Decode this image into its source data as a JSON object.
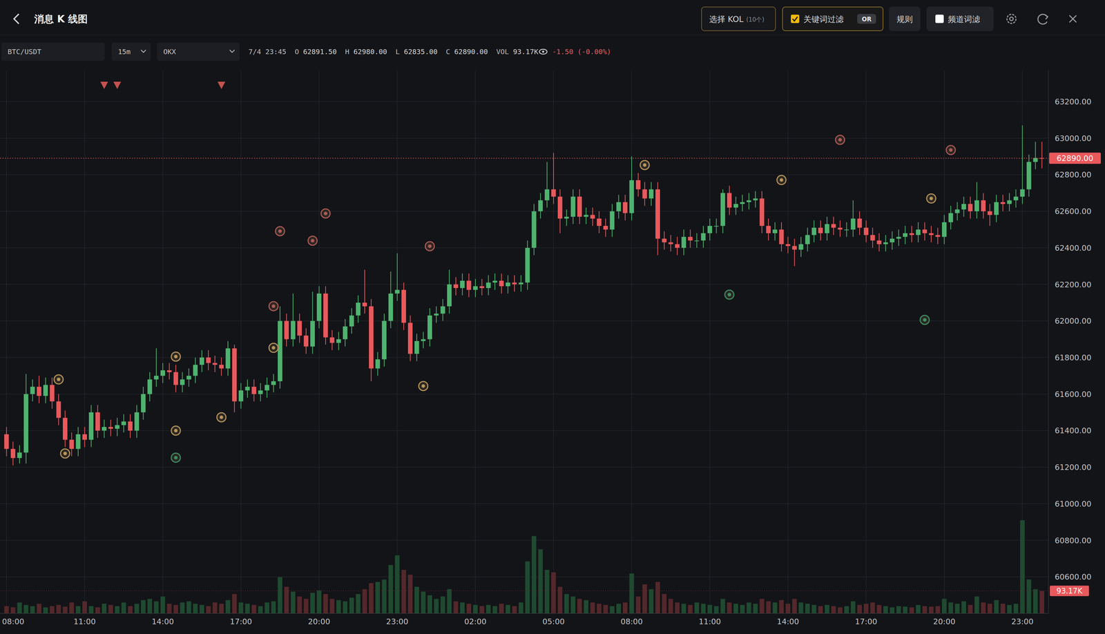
{
  "header": {
    "title": "消息 K 线图",
    "kol": "选择 KOL",
    "kol_count": "(10个)",
    "keyword_filter": "关键词过滤",
    "or": "OR",
    "rules": "规则",
    "channel_filter": "频道词滤",
    "keyword_filter_checked": true,
    "channel_filter_checked": false
  },
  "toolbar": {
    "symbol": "BTC/USDT",
    "interval": "15m",
    "exchange": "OKX",
    "ohlc_info": {
      "time": "7/4 23:45",
      "fields": [
        {
          "key": "O",
          "value": "62891.50"
        },
        {
          "key": "H",
          "value": "62980.00"
        },
        {
          "key": "L",
          "value": "62835.00"
        },
        {
          "key": "C",
          "value": "62890.00"
        },
        {
          "key": "VOL",
          "value": "93.17K"
        }
      ],
      "change": "-1.50 (-0.00%)"
    }
  },
  "chart_data": {
    "type": "candlestick",
    "grid": true,
    "categories": [
      "08:00",
      null,
      null,
      null,
      null,
      null,
      null,
      null,
      null,
      null,
      null,
      null,
      "11:00",
      null,
      null,
      null,
      null,
      null,
      null,
      null,
      null,
      null,
      null,
      null,
      "14:00",
      null,
      null,
      null,
      null,
      null,
      null,
      null,
      null,
      null,
      null,
      null,
      "17:00",
      null,
      null,
      null,
      null,
      null,
      null,
      null,
      null,
      null,
      null,
      null,
      "20:00",
      null,
      null,
      null,
      null,
      null,
      null,
      null,
      null,
      null,
      null,
      null,
      "23:00",
      null,
      null,
      null,
      null,
      null,
      null,
      null,
      null,
      null,
      null,
      null,
      "02:00",
      null,
      null,
      null,
      null,
      null,
      null,
      null,
      null,
      null,
      null,
      null,
      "05:00",
      null,
      null,
      null,
      null,
      null,
      null,
      null,
      null,
      null,
      null,
      null,
      "08:00",
      null,
      null,
      null,
      null,
      null,
      null,
      null,
      null,
      null,
      null,
      null,
      "11:00",
      null,
      null,
      null,
      null,
      null,
      null,
      null,
      null,
      null,
      null,
      null,
      "14:00",
      null,
      null,
      null,
      null,
      null,
      null,
      null,
      null,
      null,
      null,
      null,
      "17:00",
      null,
      null,
      null,
      null,
      null,
      null,
      null,
      null,
      null,
      null,
      null,
      "20:00",
      null,
      null,
      null,
      null,
      null,
      null,
      null,
      null,
      null,
      null,
      null,
      "23:00",
      null,
      null,
      null
    ],
    "open": [
      61380,
      61300,
      61250,
      61280,
      61600,
      61640,
      61590,
      61650,
      61560,
      61470,
      61350,
      61300,
      61380,
      61350,
      61500,
      61400,
      61420,
      61410,
      61430,
      61450,
      61400,
      61500,
      61600,
      61680,
      61700,
      61730,
      61720,
      61650,
      61680,
      61700,
      61760,
      61800,
      61770,
      61760,
      61740,
      61850,
      61560,
      61620,
      61640,
      61600,
      61620,
      61650,
      61670,
      62000,
      61900,
      62000,
      61920,
      61860,
      62000,
      62150,
      61910,
      61880,
      61900,
      61970,
      62030,
      62100,
      62080,
      61740,
      61790,
      62000,
      62150,
      62170,
      61990,
      61820,
      61890,
      61900,
      62030,
      62040,
      62080,
      62200,
      62180,
      62220,
      62170,
      62190,
      62180,
      62210,
      62220,
      62190,
      62210,
      62200,
      62210,
      62400,
      62600,
      62660,
      62720,
      62680,
      62560,
      62570,
      62680,
      62570,
      62580,
      62560,
      62520,
      62500,
      62600,
      62650,
      62590,
      62770,
      62720,
      62670,
      62720,
      62450,
      62430,
      62420,
      62400,
      62460,
      62440,
      62440,
      62480,
      62520,
      62520,
      62700,
      62620,
      62640,
      62650,
      62660,
      62670,
      62520,
      62480,
      62500,
      62420,
      62410,
      62390,
      62420,
      62470,
      62510,
      62480,
      62530,
      62510,
      62500,
      62500,
      62560,
      62510,
      62470,
      62440,
      62420,
      62430,
      62450,
      62460,
      62480,
      62470,
      62500,
      62480,
      62470,
      62460,
      62540,
      62590,
      62610,
      62640,
      62600,
      62660,
      62600,
      62580,
      62650,
      62640,
      62660,
      62680,
      62720,
      62870,
      62891.5
    ],
    "high": [
      61420,
      61340,
      61320,
      61710,
      61680,
      61700,
      61690,
      61690,
      61600,
      61510,
      61390,
      61420,
      61420,
      61540,
      61540,
      61460,
      61460,
      61470,
      61490,
      61490,
      61540,
      61640,
      61720,
      61850,
      61770,
      61770,
      61760,
      61720,
      61740,
      61800,
      61840,
      61840,
      61810,
      61800,
      61890,
      61870,
      61660,
      61680,
      61680,
      61660,
      61690,
      61710,
      62080,
      62040,
      62150,
      62040,
      61960,
      62160,
      62190,
      62190,
      61950,
      61940,
      62010,
      62070,
      62140,
      62280,
      62120,
      61830,
      62040,
      62270,
      62370,
      62210,
      62030,
      61930,
      61940,
      62070,
      62080,
      62120,
      62280,
      62240,
      62260,
      62260,
      62230,
      62230,
      62250,
      62260,
      62260,
      62250,
      62250,
      62250,
      62440,
      62640,
      62700,
      62870,
      62920,
      62720,
      62610,
      62720,
      62720,
      62620,
      62620,
      62600,
      62560,
      62640,
      62690,
      62690,
      62900,
      62810,
      62760,
      62760,
      62760,
      62490,
      62470,
      62460,
      62500,
      62500,
      62480,
      62520,
      62560,
      62560,
      62720,
      62740,
      62680,
      62690,
      62700,
      62710,
      62710,
      62560,
      62540,
      62540,
      62460,
      62450,
      62460,
      62510,
      62550,
      62550,
      62570,
      62570,
      62550,
      62540,
      62660,
      62600,
      62550,
      62510,
      62480,
      62470,
      62490,
      62500,
      62520,
      62520,
      62540,
      62540,
      62520,
      62510,
      62580,
      62630,
      62650,
      62680,
      62680,
      62760,
      62700,
      62640,
      62690,
      62690,
      62700,
      62720,
      63070,
      62910,
      62980,
      62980
    ],
    "low": [
      61260,
      61210,
      61220,
      61220,
      61560,
      61550,
      61550,
      61520,
      61430,
      61310,
      61260,
      61260,
      61310,
      61310,
      61360,
      61360,
      61370,
      61370,
      61390,
      61360,
      61360,
      61460,
      61560,
      61640,
      61660,
      61680,
      61610,
      61610,
      61640,
      61660,
      61720,
      61730,
      61720,
      61700,
      61700,
      61500,
      61520,
      61580,
      61560,
      61560,
      61580,
      61610,
      61630,
      61860,
      61860,
      61880,
      61820,
      61820,
      61960,
      61870,
      61840,
      61840,
      61860,
      61930,
      61990,
      62040,
      61670,
      61700,
      61750,
      61960,
      62110,
      61950,
      61780,
      61780,
      61850,
      61860,
      61990,
      62000,
      62040,
      62140,
      62140,
      62130,
      62130,
      62140,
      62140,
      62170,
      62150,
      62150,
      62160,
      62160,
      62170,
      62360,
      62560,
      62620,
      62640,
      62480,
      62520,
      62530,
      62530,
      62530,
      62520,
      62480,
      62460,
      62460,
      62560,
      62550,
      62550,
      62680,
      62630,
      62630,
      62360,
      62390,
      62380,
      62360,
      62360,
      62400,
      62400,
      62400,
      62440,
      62480,
      62480,
      62580,
      62580,
      62600,
      62610,
      62620,
      62480,
      62440,
      62440,
      62380,
      62370,
      62300,
      62350,
      62380,
      62430,
      62440,
      62440,
      62470,
      62460,
      62460,
      62460,
      62470,
      62430,
      62400,
      62380,
      62380,
      62390,
      62410,
      62420,
      62430,
      62430,
      62440,
      62430,
      62420,
      62420,
      62500,
      62550,
      62570,
      62560,
      62560,
      62560,
      62520,
      62540,
      62600,
      62600,
      62620,
      62640,
      62680,
      62830,
      62835
    ],
    "close": [
      61300,
      61250,
      61280,
      61600,
      61640,
      61590,
      61650,
      61560,
      61470,
      61350,
      61300,
      61380,
      61350,
      61500,
      61400,
      61420,
      61410,
      61430,
      61450,
      61400,
      61500,
      61600,
      61680,
      61700,
      61730,
      61720,
      61650,
      61680,
      61700,
      61760,
      61800,
      61770,
      61760,
      61740,
      61850,
      61560,
      61620,
      61640,
      61600,
      61620,
      61650,
      61670,
      62000,
      61900,
      62000,
      61920,
      61860,
      62000,
      62150,
      61910,
      61880,
      61900,
      61970,
      62030,
      62100,
      62080,
      61740,
      61790,
      62000,
      62150,
      62170,
      61990,
      61820,
      61890,
      61900,
      62030,
      62040,
      62080,
      62200,
      62180,
      62220,
      62170,
      62190,
      62180,
      62210,
      62220,
      62190,
      62210,
      62200,
      62210,
      62400,
      62600,
      62660,
      62720,
      62680,
      62560,
      62570,
      62680,
      62570,
      62580,
      62560,
      62520,
      62500,
      62600,
      62650,
      62590,
      62770,
      62720,
      62670,
      62720,
      62450,
      62430,
      62420,
      62400,
      62460,
      62440,
      62440,
      62480,
      62520,
      62520,
      62700,
      62620,
      62640,
      62650,
      62660,
      62670,
      62520,
      62480,
      62500,
      62420,
      62410,
      62390,
      62420,
      62470,
      62510,
      62480,
      62530,
      62510,
      62500,
      62500,
      62560,
      62510,
      62470,
      62440,
      62420,
      62430,
      62450,
      62460,
      62480,
      62470,
      62500,
      62480,
      62470,
      62460,
      62540,
      62590,
      62610,
      62640,
      62600,
      62660,
      62600,
      62580,
      62650,
      62640,
      62660,
      62680,
      62720,
      62870,
      62891.5,
      62890
    ],
    "volume": [
      30000,
      25000,
      45000,
      35000,
      30000,
      40000,
      25000,
      30000,
      35000,
      28000,
      45000,
      30000,
      50000,
      30000,
      25000,
      40000,
      35000,
      30000,
      45000,
      30000,
      40000,
      55000,
      60000,
      50000,
      70000,
      40000,
      35000,
      45000,
      50000,
      40000,
      35000,
      30000,
      45000,
      40000,
      55000,
      80000,
      45000,
      40000,
      35000,
      30000,
      45000,
      50000,
      150000,
      110000,
      90000,
      70000,
      60000,
      85000,
      95000,
      80000,
      60000,
      55000,
      50000,
      65000,
      80000,
      100000,
      125000,
      130000,
      140000,
      200000,
      240000,
      180000,
      160000,
      110000,
      90000,
      75000,
      60000,
      70000,
      100000,
      50000,
      45000,
      40000,
      35000,
      30000,
      35000,
      30000,
      40000,
      35000,
      30000,
      45000,
      215000,
      320000,
      265000,
      180000,
      170000,
      110000,
      80000,
      70000,
      60000,
      55000,
      45000,
      40000,
      35000,
      30000,
      40000,
      45000,
      165000,
      70000,
      120000,
      100000,
      130000,
      80000,
      60000,
      45000,
      40000,
      35000,
      45000,
      40000,
      35000,
      30000,
      60000,
      45000,
      40000,
      35000,
      45000,
      40000,
      60000,
      50000,
      45000,
      55000,
      40000,
      60000,
      45000,
      40000,
      35000,
      30000,
      35000,
      30000,
      25000,
      30000,
      50000,
      35000,
      40000,
      45000,
      35000,
      30000,
      25000,
      30000,
      28000,
      25000,
      35000,
      30000,
      28000,
      30000,
      60000,
      45000,
      40000,
      50000,
      35000,
      70000,
      45000,
      40000,
      55000,
      40000,
      35000,
      40000,
      385000,
      140000,
      100000,
      93170
    ],
    "ylim": [
      60400,
      63370
    ],
    "yticks": [
      {
        "value": 63200,
        "label": "63200.00"
      },
      {
        "value": 63000,
        "label": "63000.00"
      },
      {
        "value": 62800,
        "label": "62800.00"
      },
      {
        "value": 62600,
        "label": "62600.00"
      },
      {
        "value": 62400,
        "label": "62400.00"
      },
      {
        "value": 62200,
        "label": "62200.00"
      },
      {
        "value": 62000,
        "label": "62000.00"
      },
      {
        "value": 61800,
        "label": "61800.00"
      },
      {
        "value": 61600,
        "label": "61600.00"
      },
      {
        "value": 61400,
        "label": "61400.00"
      },
      {
        "value": 61200,
        "label": "61200.00"
      },
      {
        "value": 61000,
        "label": "61000.00"
      },
      {
        "value": 60800,
        "label": "60800.00"
      },
      {
        "value": 60600,
        "label": "60600.00"
      }
    ],
    "y2lim": [
      0,
      700000
    ],
    "y2ticks": [
      {
        "value": 93170,
        "label": "93.17K"
      }
    ],
    "last_price_label": "62890.00",
    "markers": {
      "x": [
        8,
        9,
        26,
        26,
        26,
        33,
        41,
        41,
        42,
        47,
        49,
        64,
        65,
        98,
        111,
        119,
        128,
        141,
        142,
        145
      ],
      "values": [
        61680,
        61275,
        61805,
        61400,
        61252,
        61473,
        62081,
        61853,
        62491,
        62439,
        62588,
        61644,
        62409,
        62853,
        62144,
        62771,
        62991,
        62006,
        62670,
        62935
      ],
      "colors": [
        "#b8955a",
        "#b8955a",
        "#b8955a",
        "#b8955a",
        "#3e8f62",
        "#b8955a",
        "#b05a55",
        "#b8955a",
        "#b05a55",
        "#b05a55",
        "#b05a55",
        "#b8955a",
        "#b05a55",
        "#b8955a",
        "#3e8f62",
        "#b8955a",
        "#b05a55",
        "#3e8f62",
        "#b8955a",
        "#b05a55"
      ]
    },
    "signals": {
      "x": [
        15,
        17,
        33
      ],
      "color": "#c4524f"
    }
  }
}
